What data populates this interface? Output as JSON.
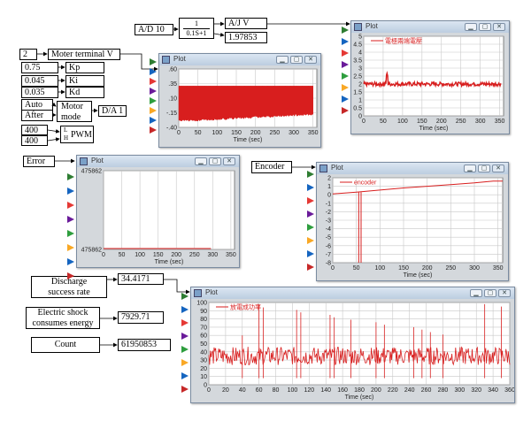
{
  "blocks": {
    "ad10": "A/D 10",
    "filter_num": "1",
    "filter_den": "0.1S+1",
    "ajv": "A/J V",
    "ajv_value": "1.97853",
    "const_2": "2",
    "motor_terminal": "Moter terminal V",
    "kp_value": "0.75",
    "kp": "Kp",
    "ki_value": "0.045",
    "ki": "Ki",
    "kd_value": "0.035",
    "kd": "Kd",
    "auto": "Auto",
    "after": "After",
    "motor_mode_1": "Motor",
    "motor_mode_2": "mode",
    "da1": "D/A 1",
    "pwm_in1": "400",
    "pwm_in2": "400",
    "pwm_l": "L",
    "pwm_h": "H",
    "pwm": "PWM",
    "error": "Error",
    "encoder": "Encoder",
    "discharge_1": "Discharge",
    "discharge_2": "success rate",
    "discharge_value": "34.4171",
    "shock_1": "Electric shock",
    "shock_2": "consumes energy",
    "shock_value": "7929.71",
    "count": "Count",
    "count_value": "61950853"
  },
  "window_title": "Plot",
  "port_colors": [
    "#2e7d32",
    "#1565c0",
    "#e53935",
    "#6a1b9a",
    "#2e9e3e",
    "#f9a825",
    "#1565c0",
    "#c62828"
  ],
  "chart_data": [
    {
      "id": "motor-voltage",
      "type": "area",
      "xlabel": "Time (sec)",
      "x_ticks": [
        0,
        50,
        100,
        150,
        200,
        250,
        300,
        350
      ],
      "y_ticks": [
        ".60",
        ".35",
        ".10",
        "-.15",
        "-.40"
      ],
      "xlim": [
        0,
        360
      ],
      "ylim": [
        -0.45,
        0.65
      ],
      "band": {
        "low": [
          [
            0,
            -0.33
          ],
          [
            360,
            -0.2
          ]
        ],
        "high": [
          [
            0,
            0.33
          ],
          [
            360,
            0.33
          ]
        ]
      },
      "color": "#d81e1e"
    },
    {
      "id": "voltage-plot",
      "type": "line",
      "legend": "電極兩端電壓",
      "xlabel": "Time (sec)",
      "x_ticks": [
        0,
        50,
        100,
        150,
        200,
        250,
        300,
        350
      ],
      "y_ticks": [
        "5",
        "4.5",
        "4",
        "3.5",
        "3",
        "2.5",
        "2",
        "1.5",
        "1",
        "0.5",
        "0"
      ],
      "xlim": [
        0,
        360
      ],
      "ylim": [
        0,
        5
      ],
      "mean": 2.0,
      "color": "#d81e1e"
    },
    {
      "id": "error-plot",
      "type": "line",
      "xlabel": "Time (sec)",
      "x_ticks": [
        0,
        50,
        100,
        150,
        200,
        250,
        300,
        350
      ],
      "y_ticks": [
        "475862",
        "475862"
      ],
      "xlim": [
        0,
        360
      ],
      "color": "#d81e1e"
    },
    {
      "id": "encoder-plot",
      "type": "line",
      "legend": "encoder",
      "xlabel": "Time (sec)",
      "x_ticks": [
        0,
        50,
        100,
        150,
        200,
        250,
        300,
        350
      ],
      "y_ticks": [
        "2",
        "1",
        "0",
        "-1",
        "-2",
        "-3",
        "-4",
        "-5",
        "-6",
        "-7",
        "-8"
      ],
      "xlim": [
        0,
        360
      ],
      "ylim": [
        -8,
        2
      ],
      "points": [
        [
          0,
          0.1
        ],
        [
          50,
          0.3
        ],
        [
          100,
          0.55
        ],
        [
          150,
          0.8
        ],
        [
          200,
          1.0
        ],
        [
          250,
          1.2
        ],
        [
          300,
          1.4
        ],
        [
          340,
          1.6
        ],
        [
          360,
          1.6
        ]
      ],
      "spike_x": [
        55,
        60
      ],
      "spike_min": -8,
      "color": "#d81e1e"
    },
    {
      "id": "discharge-plot",
      "type": "line",
      "legend": "放電成功率",
      "xlabel": "Time (sec)",
      "x_ticks": [
        0,
        20,
        40,
        60,
        80,
        100,
        120,
        140,
        160,
        180,
        200,
        220,
        240,
        260,
        280,
        300,
        320,
        340,
        360
      ],
      "y_ticks": [
        "100",
        "90",
        "80",
        "70",
        "60",
        "50",
        "40",
        "30",
        "20",
        "10",
        "0"
      ],
      "xlim": [
        0,
        360
      ],
      "ylim": [
        0,
        100
      ],
      "mean": 35,
      "spike_x": [
        40,
        60,
        65,
        105,
        110,
        145,
        150,
        170,
        200,
        210,
        245,
        255,
        265,
        280,
        330,
        350
      ],
      "color": "#d81e1e"
    }
  ]
}
